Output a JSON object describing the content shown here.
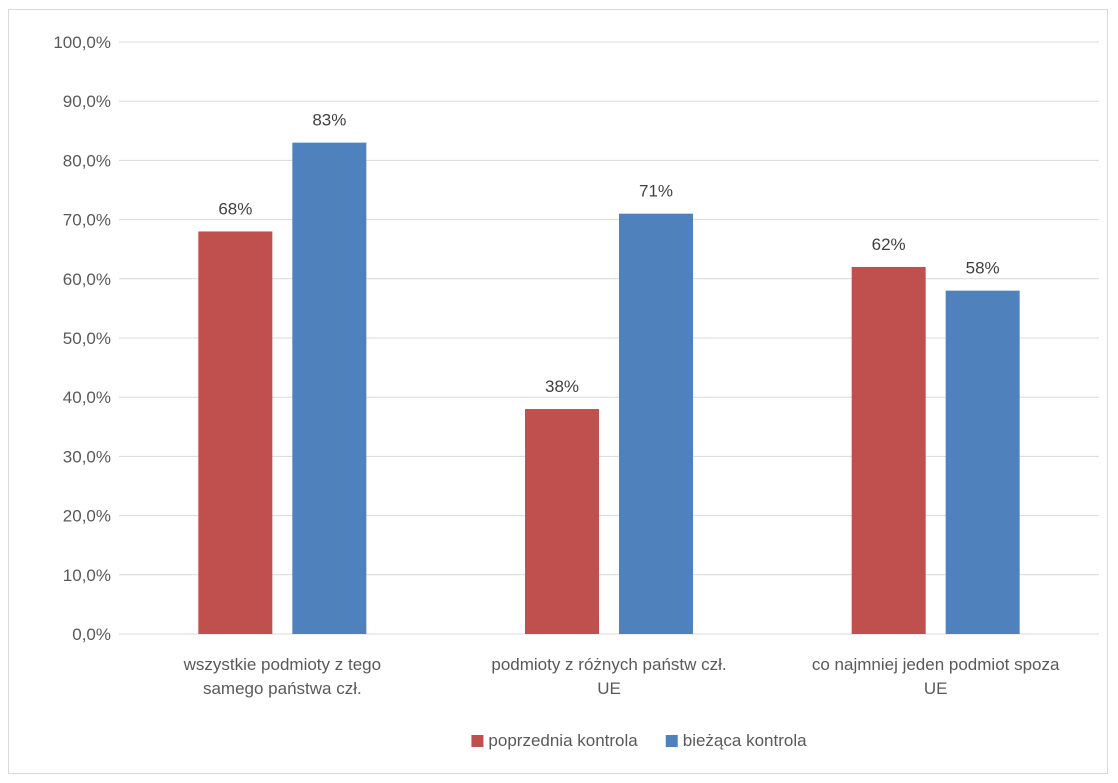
{
  "chart_data": {
    "type": "bar",
    "title": "",
    "xlabel": "",
    "ylabel": "",
    "categories": [
      [
        "wszystkie podmioty z tego",
        "samego państwa czł."
      ],
      [
        "podmioty z różnych państw czł.",
        "UE"
      ],
      [
        "co najmniej jeden podmiot spoza",
        "UE"
      ]
    ],
    "series": [
      {
        "name": "poprzednia kontrola",
        "color": "#c0504d",
        "values": [
          68,
          38,
          62
        ],
        "labels": [
          "68%",
          "38%",
          "62%"
        ]
      },
      {
        "name": "bieżąca kontrola",
        "color": "#4f81bd",
        "values": [
          83,
          71,
          58
        ],
        "labels": [
          "83%",
          "71%",
          "58%"
        ]
      }
    ],
    "ylim": [
      0,
      100
    ],
    "yticks": [
      0,
      10,
      20,
      30,
      40,
      50,
      60,
      70,
      80,
      90,
      100
    ],
    "ytick_labels": [
      "0,0%",
      "10,0%",
      "20,0%",
      "30,0%",
      "40,0%",
      "50,0%",
      "60,0%",
      "70,0%",
      "80,0%",
      "90,0%",
      "100,0%"
    ],
    "grid": true,
    "legend_position": "bottom-center"
  }
}
